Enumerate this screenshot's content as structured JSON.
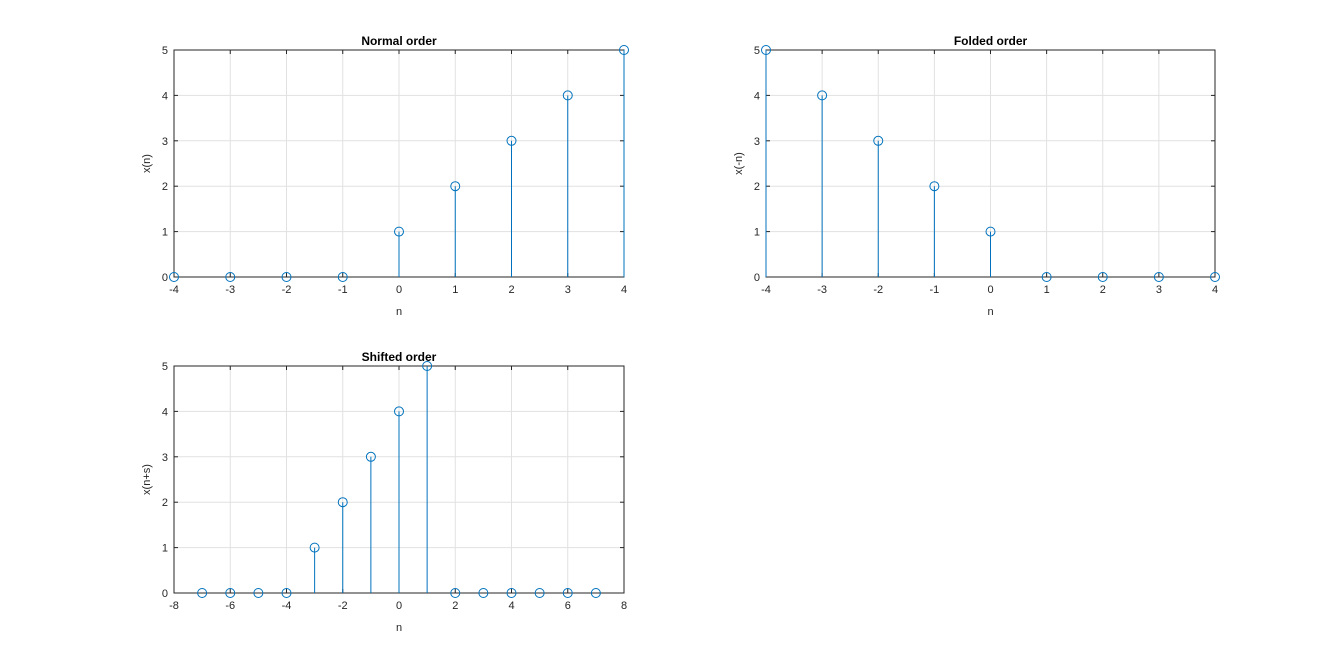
{
  "chart_data": [
    {
      "type": "stem",
      "title": "Normal order",
      "xlabel": "n",
      "ylabel": "x(n)",
      "xlim": [
        -4,
        4
      ],
      "ylim": [
        0,
        5
      ],
      "xticks": [
        "-4",
        "-3",
        "-2",
        "-1",
        "0",
        "1",
        "2",
        "3",
        "4"
      ],
      "yticks": [
        "0",
        "1",
        "2",
        "3",
        "4",
        "5"
      ],
      "grid": true,
      "color": "#0072BD",
      "x": [
        -4,
        -3,
        -2,
        -1,
        0,
        1,
        2,
        3,
        4
      ],
      "y": [
        0,
        0,
        0,
        0,
        1,
        2,
        3,
        4,
        5
      ]
    },
    {
      "type": "stem",
      "title": "Folded order",
      "xlabel": "n",
      "ylabel": "x(-n)",
      "xlim": [
        -4,
        4
      ],
      "ylim": [
        0,
        5
      ],
      "xticks": [
        "-4",
        "-3",
        "-2",
        "-1",
        "0",
        "1",
        "2",
        "3",
        "4"
      ],
      "yticks": [
        "0",
        "1",
        "2",
        "3",
        "4",
        "5"
      ],
      "grid": true,
      "color": "#0072BD",
      "x": [
        -4,
        -3,
        -2,
        -1,
        0,
        1,
        2,
        3,
        4
      ],
      "y": [
        5,
        4,
        3,
        2,
        1,
        0,
        0,
        0,
        0
      ]
    },
    {
      "type": "stem",
      "title": "Shifted order",
      "xlabel": "n",
      "ylabel": "x(n+s)",
      "xlim": [
        -8,
        8
      ],
      "ylim": [
        0,
        5
      ],
      "xticks": [
        "-8",
        "-6",
        "-4",
        "-2",
        "0",
        "2",
        "4",
        "6",
        "8"
      ],
      "yticks": [
        "0",
        "1",
        "2",
        "3",
        "4",
        "5"
      ],
      "grid": true,
      "color": "#0072BD",
      "x": [
        -7,
        -6,
        -5,
        -4,
        -3,
        -2,
        -1,
        0,
        1,
        2,
        3,
        4,
        5,
        6,
        7
      ],
      "y": [
        0,
        0,
        0,
        0,
        1,
        2,
        3,
        4,
        5,
        0,
        0,
        0,
        0,
        0,
        0
      ]
    }
  ]
}
